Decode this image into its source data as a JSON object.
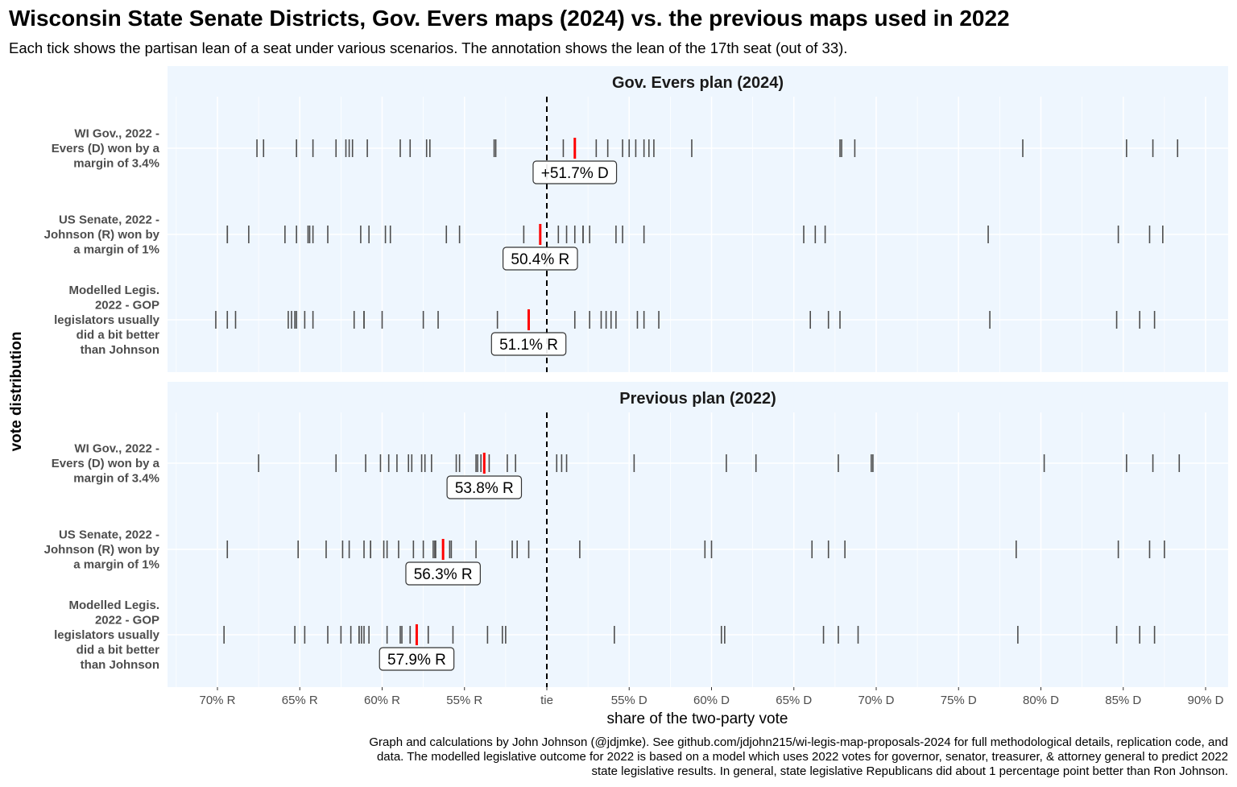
{
  "chart_data": {
    "type": "scatter",
    "mark": "vertical tick (strip plot)",
    "title": "Wisconsin State Senate Districts, Gov. Evers maps (2024) vs. the previous maps used in 2022",
    "subtitle": "Each tick shows the partisan lean of a seat under various scenarios. The annotation shows the lean of the 17th seat (out of 33).",
    "xlabel": "share of the two-party vote",
    "ylabel": "vote distribution",
    "value_meaning": "Democratic share of the two-party vote (%)",
    "xlim": [
      27,
      91.5
    ],
    "xticks": [
      30,
      35,
      40,
      45,
      50,
      55,
      60,
      65,
      70,
      75,
      80,
      85,
      90
    ],
    "xtick_labels": [
      "70% R",
      "65% R",
      "60% R",
      "55% R",
      "tie",
      "55% D",
      "60% D",
      "65% D",
      "70% D",
      "75% D",
      "80% D",
      "85% D",
      "90% D"
    ],
    "grid": true,
    "reference_line": {
      "x": 50,
      "style": "dashed"
    },
    "colors": {
      "tick": "#4d4d4d",
      "median": "#ff0000",
      "panel_bg": "#eef6fe",
      "grid": "#ffffff"
    },
    "caption": [
      "Graph and calculations by John Johnson (@jdjmke). See github.com/jdjohn215/wi-legis-map-proposals-2024 for full methodological details, replication code, and",
      "data. The modelled legislative outcome for 2022 is based on a model which uses 2022 votes for governor, senator, treasurer, & attorney general to predict 2022",
      "state legislative results. In general, state legislative Republicans did about 1 percentage point better than Ron Johnson."
    ],
    "panels": [
      {
        "title": "Gov. Evers plan (2024)",
        "rows": [
          {
            "label": [
              "WI Gov., 2022 -",
              "Evers (D) won by a",
              "margin of 3.4%"
            ],
            "seat17": 51.7,
            "annotation": "+51.7% D",
            "values": [
              32.4,
              32.8,
              34.8,
              35.8,
              37.2,
              37.8,
              38.0,
              38.2,
              39.1,
              41.1,
              41.7,
              42.7,
              42.9,
              46.8,
              46.9,
              51.0,
              51.7,
              53.0,
              53.7,
              54.6,
              55.0,
              55.4,
              55.9,
              56.2,
              56.5,
              58.8,
              67.8,
              67.9,
              68.7,
              78.9,
              85.2,
              86.8,
              88.3
            ]
          },
          {
            "label": [
              "US Senate, 2022 -",
              "Johnson (R) won by",
              "a margin of 1%"
            ],
            "seat17": 49.6,
            "annotation": "50.4% R",
            "values": [
              30.6,
              30.6,
              31.9,
              34.1,
              34.8,
              35.5,
              35.6,
              35.8,
              36.7,
              38.7,
              39.2,
              40.2,
              40.5,
              43.9,
              44.7,
              48.6,
              49.6,
              50.7,
              51.2,
              51.7,
              52.2,
              52.2,
              52.6,
              54.2,
              54.6,
              55.9,
              65.6,
              66.3,
              66.9,
              76.8,
              84.7,
              86.6,
              87.4
            ]
          },
          {
            "label": [
              "Modelled Legis.",
              "2022 - GOP",
              "legislators usually",
              "did a bit better",
              "than Johnson"
            ],
            "seat17": 48.9,
            "annotation": "51.1% R",
            "values": [
              29.9,
              30.6,
              31.1,
              34.3,
              34.5,
              34.7,
              34.8,
              35.3,
              35.8,
              38.3,
              38.9,
              38.9,
              40.0,
              42.5,
              43.4,
              47.0,
              48.9,
              51.7,
              52.6,
              53.3,
              53.6,
              53.9,
              54.2,
              55.5,
              55.9,
              56.8,
              66.0,
              67.1,
              67.8,
              76.9,
              84.6,
              86.0,
              86.9
            ]
          }
        ]
      },
      {
        "title": "Previous plan (2022)",
        "rows": [
          {
            "label": [
              "WI Gov., 2022 -",
              "Evers (D) won by a",
              "margin of 3.4%"
            ],
            "seat17": 46.2,
            "annotation": "53.8% R",
            "values": [
              32.5,
              37.2,
              39.0,
              39.9,
              40.4,
              40.9,
              41.6,
              41.8,
              42.4,
              42.6,
              43.0,
              44.5,
              44.7,
              45.7,
              45.8,
              46.0,
              46.2,
              46.5,
              47.6,
              48.1,
              50.6,
              50.9,
              51.2,
              55.3,
              60.9,
              62.7,
              67.7,
              69.7,
              69.8,
              80.2,
              85.2,
              86.8,
              88.4
            ]
          },
          {
            "label": [
              "US Senate, 2022 -",
              "Johnson (R) won by",
              "a margin of 1%"
            ],
            "seat17": 43.7,
            "annotation": "56.3% R",
            "values": [
              30.6,
              34.9,
              36.6,
              37.6,
              38.0,
              38.9,
              39.3,
              39.3,
              40.1,
              40.3,
              41.0,
              41.9,
              42.5,
              43.1,
              43.2,
              43.25,
              43.7,
              44.1,
              44.2,
              45.7,
              47.9,
              48.2,
              48.9,
              52.0,
              59.6,
              60.0,
              66.1,
              67.1,
              68.1,
              78.5,
              84.7,
              86.6,
              87.5
            ]
          },
          {
            "label": [
              "Modelled Legis.",
              "2022 - GOP",
              "legislators usually",
              "did a bit better",
              "than Johnson"
            ],
            "seat17": 42.1,
            "annotation": "57.9% R",
            "values": [
              30.4,
              34.7,
              35.3,
              36.7,
              37.5,
              38.1,
              38.6,
              38.6,
              38.75,
              38.9,
              39.2,
              40.3,
              41.1,
              41.2,
              41.7,
              41.7,
              42.1,
              42.8,
              42.8,
              44.3,
              46.4,
              47.3,
              47.5,
              54.1,
              60.6,
              60.8,
              66.8,
              67.7,
              68.9,
              78.6,
              84.6,
              86.0,
              86.9
            ]
          }
        ]
      }
    ]
  }
}
